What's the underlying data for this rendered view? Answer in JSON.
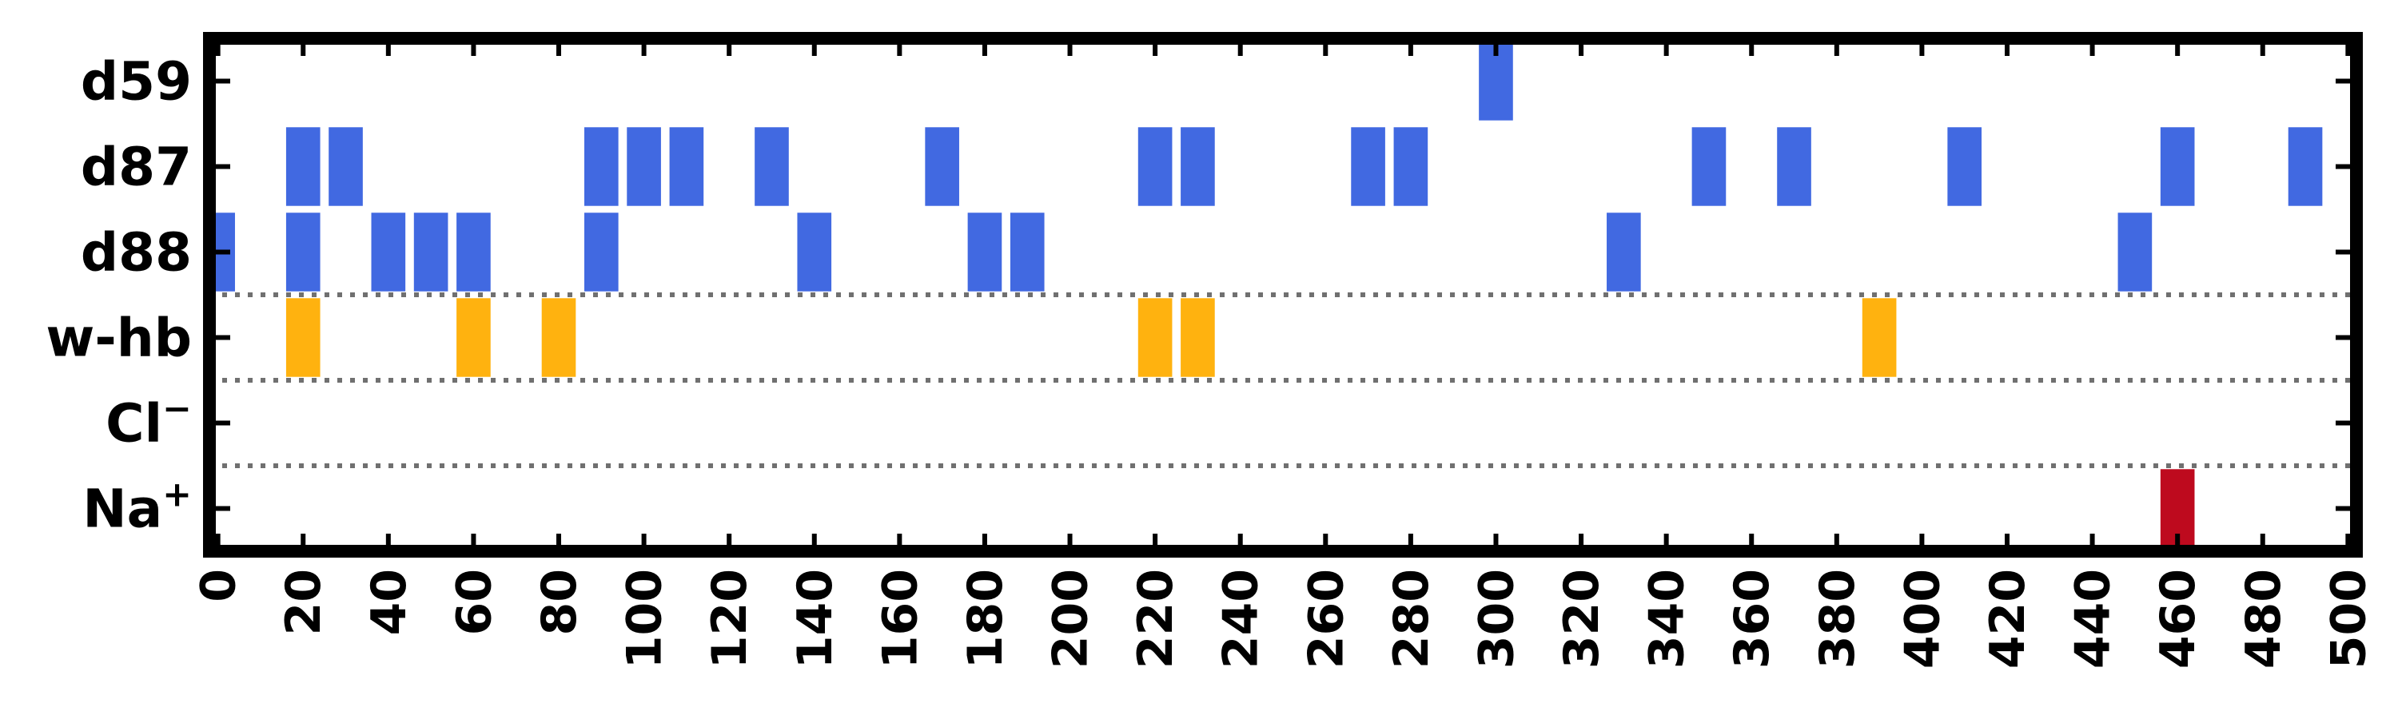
{
  "chart_data": {
    "type": "heatmap",
    "title": "",
    "xlabel": "",
    "ylabel": "",
    "xlim": [
      -2,
      502
    ],
    "x_ticks": [
      0,
      20,
      40,
      60,
      80,
      100,
      120,
      140,
      160,
      180,
      200,
      220,
      240,
      260,
      280,
      300,
      320,
      340,
      360,
      380,
      400,
      420,
      440,
      460,
      480,
      500
    ],
    "rows": [
      {
        "name": "d59",
        "color": "#4169e1",
        "events": [
          300
        ]
      },
      {
        "name": "d87",
        "color": "#4169e1",
        "events": [
          20,
          30,
          90,
          100,
          110,
          130,
          170,
          220,
          230,
          270,
          280,
          350,
          370,
          410,
          460,
          490
        ]
      },
      {
        "name": "d88",
        "color": "#4169e1",
        "events": [
          0,
          20,
          40,
          50,
          60,
          90,
          140,
          180,
          190,
          330,
          450
        ]
      },
      {
        "name": "w-hb",
        "color": "#ffb20f",
        "events": [
          20,
          60,
          80,
          220,
          230,
          390
        ]
      },
      {
        "name": "Cl",
        "sup": "−",
        "color": "#000000",
        "events": []
      },
      {
        "name": "Na",
        "sup": "+",
        "color": "#be0a1e",
        "events": [
          460
        ]
      }
    ],
    "event_width": 8,
    "separators_after_rows": [
      "d88",
      "w-hb",
      "Cl"
    ],
    "grid": false,
    "legend": "none"
  }
}
